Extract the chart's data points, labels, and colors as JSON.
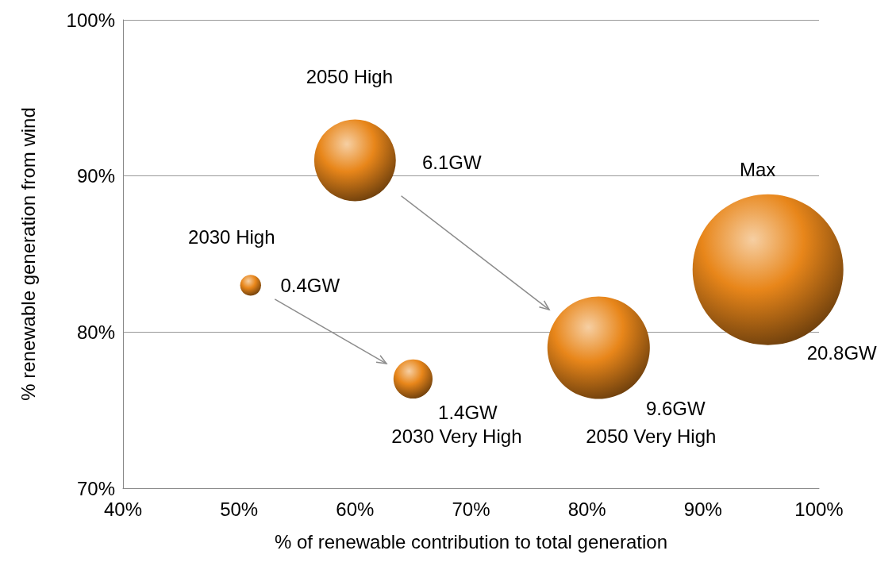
{
  "chart_data": {
    "type": "bubble",
    "xlabel": "% of renewable contribution to total generation",
    "ylabel": "% renewable generation from wind",
    "x": [
      51,
      65,
      60,
      81,
      95.6
    ],
    "values": [
      83,
      77,
      91,
      79,
      84
    ],
    "sizes": [
      0.4,
      1.4,
      6.1,
      9.6,
      20.8
    ],
    "value_labels": [
      "0.4GW",
      "1.4GW",
      "6.1GW",
      "9.6GW",
      "20.8GW"
    ],
    "color": "#e8861a",
    "xlim": [
      40,
      100
    ],
    "xticks": [
      {
        "value": 40,
        "label": "40%"
      },
      {
        "value": 50,
        "label": "50%"
      },
      {
        "value": 60,
        "label": "60%"
      },
      {
        "value": 70,
        "label": "70%"
      },
      {
        "value": 80,
        "label": "80%"
      },
      {
        "value": 90,
        "label": "90%"
      },
      {
        "value": 100,
        "label": "100%"
      }
    ],
    "ylim": [
      70,
      100
    ],
    "yticks": [
      {
        "value": 70,
        "label": "70%"
      },
      {
        "value": 80,
        "label": "80%"
      },
      {
        "value": 90,
        "label": "90%"
      },
      {
        "value": 100,
        "label": "100%"
      }
    ],
    "grid": "y",
    "annotations": [
      "2030 High",
      "2030 Very High",
      "2050 High",
      "2050 Very High",
      "Max"
    ]
  }
}
